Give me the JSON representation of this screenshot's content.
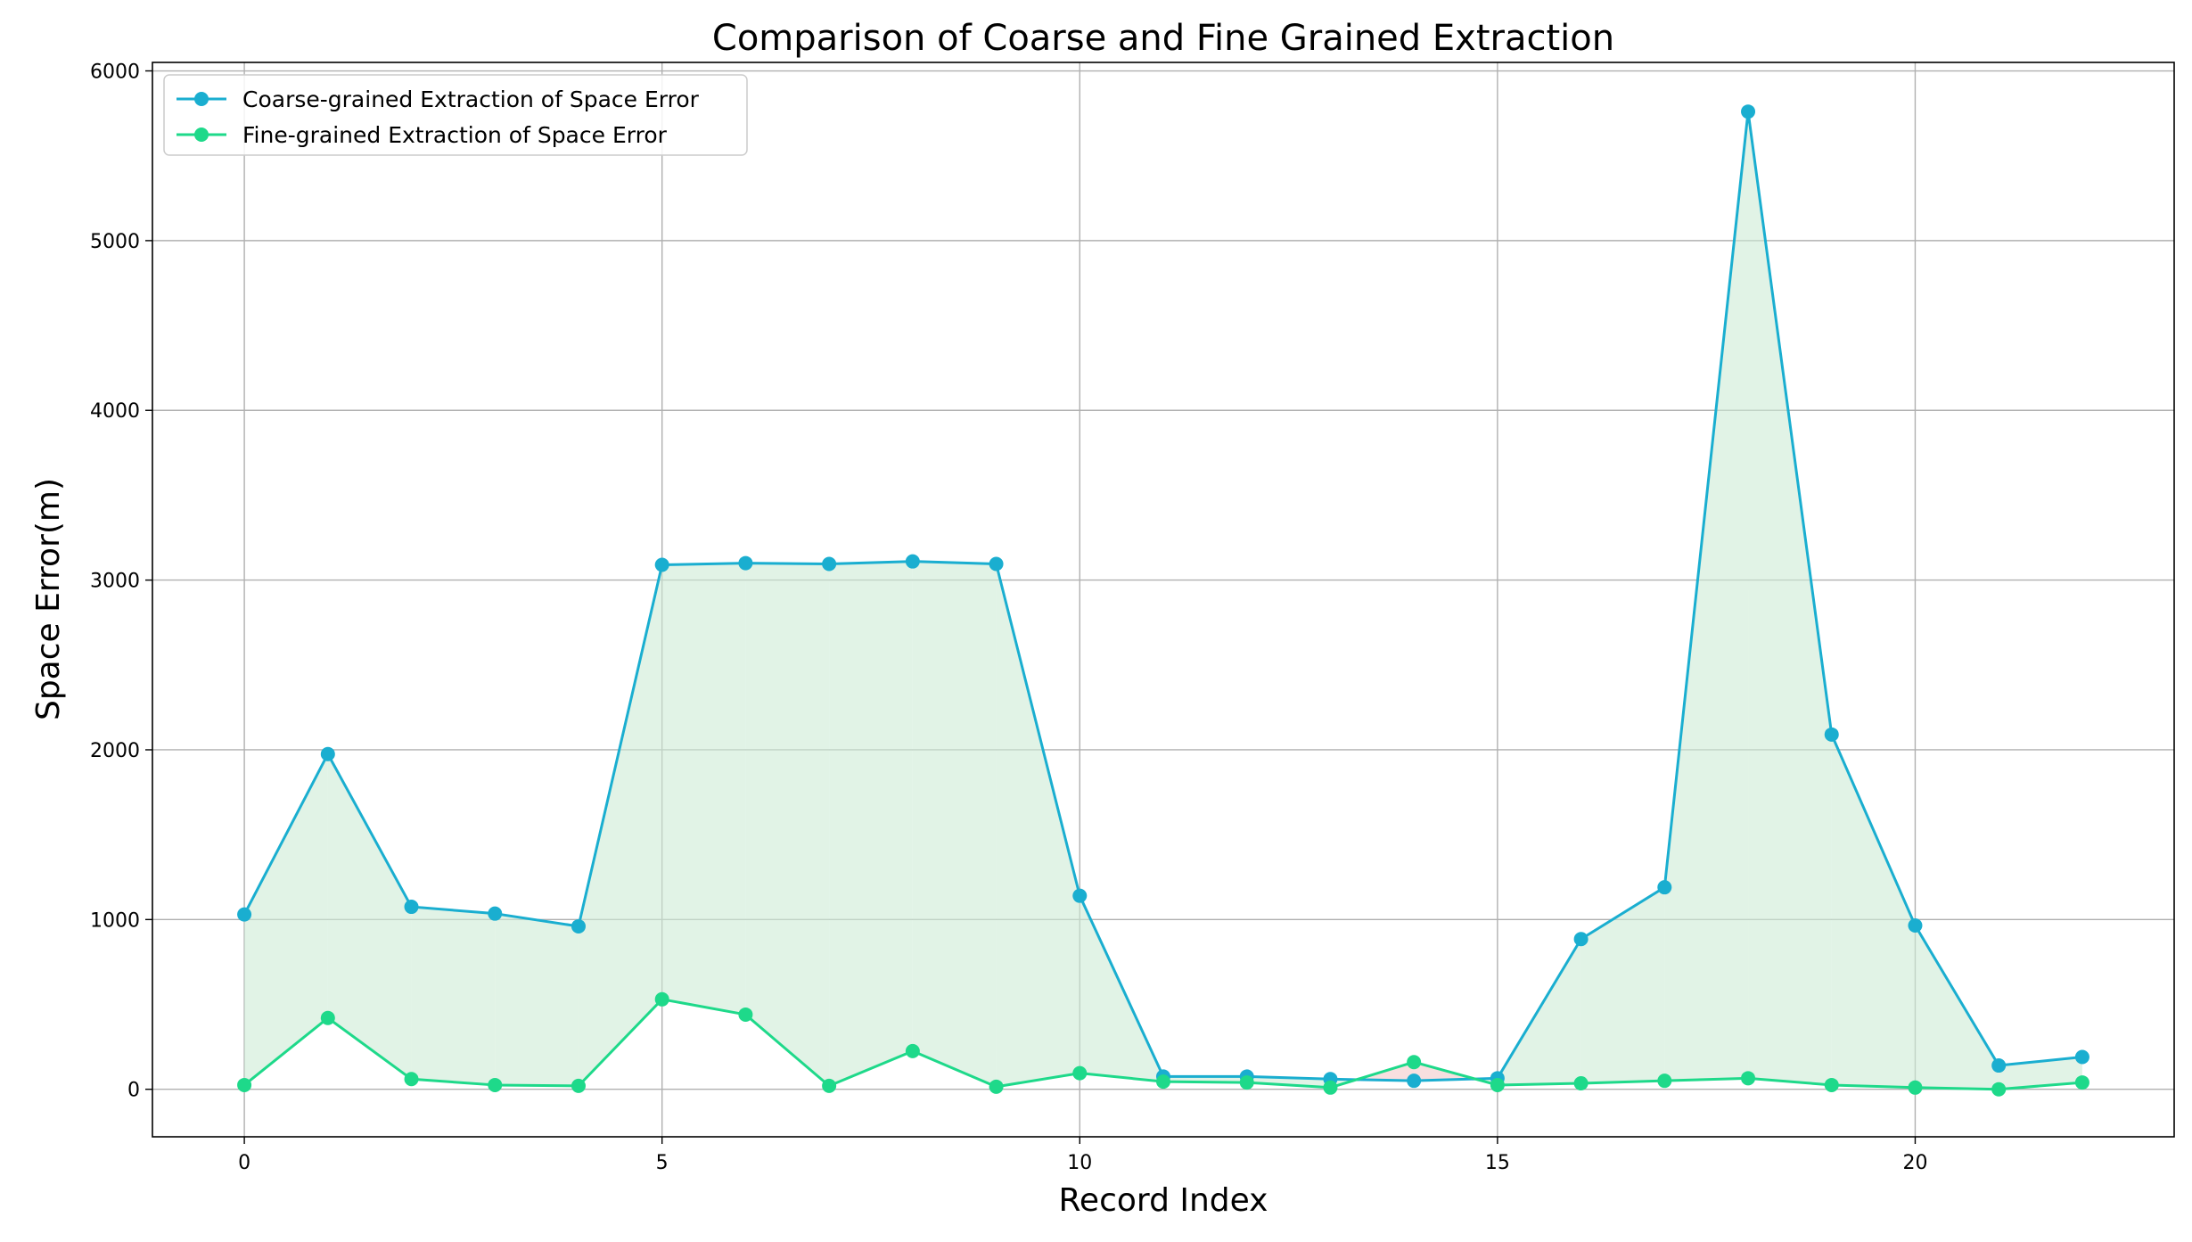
{
  "chart_data": {
    "type": "line",
    "title": "Comparison of Coarse and Fine Grained Extraction",
    "xlabel": "Record Index",
    "ylabel": "Space Error(m)",
    "xlim": [
      -1.1,
      23.1
    ],
    "ylim": [
      -280,
      6050
    ],
    "xticks": [
      0,
      5,
      10,
      15,
      20
    ],
    "yticks": [
      0,
      1000,
      2000,
      3000,
      4000,
      5000,
      6000
    ],
    "grid": true,
    "legend_position": "top-left",
    "x": [
      0,
      1,
      2,
      3,
      4,
      5,
      6,
      7,
      8,
      9,
      10,
      11,
      12,
      13,
      14,
      15,
      16,
      17,
      18,
      19,
      20,
      21,
      22
    ],
    "series": [
      {
        "name": "Coarse-grained Extraction of Space Error",
        "color": "#1aaed0",
        "values": [
          1030,
          1975,
          1075,
          1035,
          960,
          3090,
          3100,
          3095,
          3110,
          3095,
          1140,
          75,
          75,
          60,
          50,
          65,
          885,
          1190,
          5760,
          2090,
          965,
          140,
          190
        ]
      },
      {
        "name": "Fine-grained Extraction of Space Error",
        "color": "#1ed98a",
        "values": [
          25,
          420,
          60,
          25,
          20,
          530,
          440,
          20,
          225,
          15,
          95,
          45,
          40,
          10,
          160,
          25,
          35,
          50,
          65,
          25,
          10,
          0,
          40
        ]
      }
    ],
    "fill_between": {
      "color_above": "#cdebd6",
      "color_below": "#f3c9c9"
    }
  }
}
